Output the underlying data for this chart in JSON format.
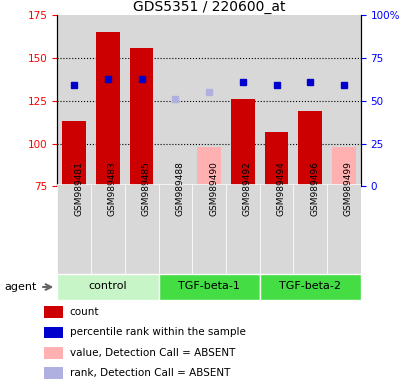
{
  "title": "GDS5351 / 220600_at",
  "samples": [
    "GSM989481",
    "GSM989483",
    "GSM989485",
    "GSM989488",
    "GSM989490",
    "GSM989492",
    "GSM989494",
    "GSM989496",
    "GSM989499"
  ],
  "groups": [
    {
      "label": "control",
      "color": "#c8f5c8",
      "indices": [
        0,
        1,
        2
      ]
    },
    {
      "label": "TGF-beta-1",
      "color": "#44dd44",
      "indices": [
        3,
        4,
        5
      ]
    },
    {
      "label": "TGF-beta-2",
      "color": "#44dd44",
      "indices": [
        6,
        7,
        8
      ]
    }
  ],
  "bar_values": [
    113,
    165,
    156,
    null,
    null,
    126,
    107,
    119,
    null
  ],
  "bar_absent_values": [
    null,
    null,
    null,
    null,
    98,
    null,
    null,
    null,
    98
  ],
  "bar_absent_small": [
    null,
    null,
    null,
    76,
    null,
    null,
    null,
    null,
    null
  ],
  "rank_values": [
    134,
    138,
    138,
    null,
    null,
    136,
    134,
    136,
    134
  ],
  "rank_absent_values": [
    null,
    null,
    null,
    null,
    130,
    null,
    null,
    null,
    null
  ],
  "rank_absent_small": [
    null,
    null,
    null,
    126,
    null,
    null,
    null,
    null,
    null
  ],
  "ylim_left": [
    75,
    175
  ],
  "ylim_right": [
    0,
    100
  ],
  "yticks_left": [
    75,
    100,
    125,
    150,
    175
  ],
  "yticks_right": [
    0,
    25,
    50,
    75,
    100
  ],
  "ytick_labels_right": [
    "0",
    "25",
    "50",
    "75",
    "100%"
  ],
  "bar_color": "#cc0000",
  "bar_absent_color": "#ffb0b0",
  "rank_color": "#0000cc",
  "rank_absent_color": "#b0b0e0",
  "agent_label": "agent",
  "legend_items": [
    {
      "color": "#cc0000",
      "label": "count"
    },
    {
      "color": "#0000cc",
      "label": "percentile rank within the sample"
    },
    {
      "color": "#ffb0b0",
      "label": "value, Detection Call = ABSENT"
    },
    {
      "color": "#b0b0e0",
      "label": "rank, Detection Call = ABSENT"
    }
  ]
}
